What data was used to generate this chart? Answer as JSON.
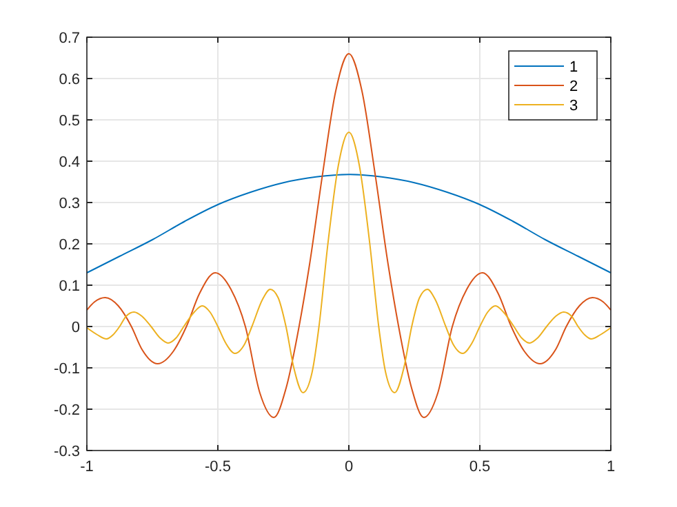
{
  "chart_data": {
    "type": "line",
    "xlim": [
      -1,
      1
    ],
    "ylim": [
      -0.3,
      0.7
    ],
    "xticks": [
      -1,
      -0.5,
      0,
      0.5,
      1
    ],
    "yticks": [
      -0.3,
      -0.2,
      -0.1,
      0,
      0.1,
      0.2,
      0.3,
      0.4,
      0.5,
      0.6,
      0.7
    ],
    "grid": true,
    "legend": "top right",
    "marker": "none",
    "line_style": "solid",
    "series": [
      {
        "name": "1",
        "color": "#0072bd",
        "x": [
          -1,
          -0.875,
          -0.75,
          -0.625,
          -0.5,
          -0.375,
          -0.25,
          -0.125,
          0,
          0.125,
          0.25,
          0.375,
          0.5,
          0.625,
          0.75,
          0.875,
          1
        ],
        "values": [
          0.13,
          0.17,
          0.21,
          0.255,
          0.295,
          0.325,
          0.348,
          0.362,
          0.368,
          0.362,
          0.348,
          0.325,
          0.295,
          0.255,
          0.21,
          0.17,
          0.13
        ]
      },
      {
        "name": "2",
        "color": "#d95319",
        "x": [
          -1,
          -0.97,
          -0.93,
          -0.88,
          -0.83,
          -0.79,
          -0.73,
          -0.67,
          -0.62,
          -0.57,
          -0.51,
          -0.45,
          -0.395,
          -0.34,
          -0.286,
          -0.24,
          -0.19,
          -0.15,
          -0.1,
          -0.05,
          0,
          0.05,
          0.1,
          0.15,
          0.19,
          0.24,
          0.286,
          0.34,
          0.395,
          0.45,
          0.51,
          0.57,
          0.62,
          0.67,
          0.73,
          0.79,
          0.83,
          0.88,
          0.93,
          0.97,
          1
        ],
        "values": [
          0.04,
          0.06,
          0.07,
          0.05,
          0,
          -0.055,
          -0.09,
          -0.06,
          0,
          0.08,
          0.13,
          0.09,
          0,
          -0.16,
          -0.22,
          -0.15,
          0,
          0.15,
          0.37,
          0.57,
          0.66,
          0.57,
          0.37,
          0.15,
          0,
          -0.15,
          -0.22,
          -0.16,
          0,
          0.09,
          0.13,
          0.08,
          0,
          -0.06,
          -0.09,
          -0.055,
          0,
          0.05,
          0.07,
          0.06,
          0.04
        ]
      },
      {
        "name": "3",
        "color": "#edb120",
        "x": [
          -1,
          -0.96,
          -0.925,
          -0.9,
          -0.875,
          -0.85,
          -0.82,
          -0.79,
          -0.755,
          -0.72,
          -0.69,
          -0.66,
          -0.63,
          -0.59,
          -0.56,
          -0.53,
          -0.5,
          -0.47,
          -0.435,
          -0.4,
          -0.37,
          -0.33,
          -0.3,
          -0.27,
          -0.24,
          -0.21,
          -0.175,
          -0.14,
          -0.114,
          -0.08,
          -0.04,
          0,
          0.04,
          0.08,
          0.114,
          0.14,
          0.175,
          0.21,
          0.24,
          0.27,
          0.3,
          0.33,
          0.37,
          0.4,
          0.435,
          0.47,
          0.5,
          0.53,
          0.56,
          0.59,
          0.63,
          0.66,
          0.69,
          0.72,
          0.755,
          0.79,
          0.82,
          0.85,
          0.875,
          0.9,
          0.925,
          0.96,
          1
        ],
        "values": [
          -0.003,
          -0.02,
          -0.03,
          -0.02,
          0,
          0.025,
          0.035,
          0.025,
          0,
          -0.028,
          -0.04,
          -0.028,
          0,
          0.035,
          0.05,
          0.035,
          0,
          -0.04,
          -0.065,
          -0.045,
          0,
          0.065,
          0.09,
          0.07,
          0,
          -0.1,
          -0.16,
          -0.11,
          0,
          0.2,
          0.39,
          0.47,
          0.39,
          0.2,
          0,
          -0.11,
          -0.16,
          -0.1,
          0,
          0.07,
          0.09,
          0.065,
          0,
          -0.045,
          -0.065,
          -0.04,
          0,
          0.035,
          0.05,
          0.035,
          0,
          -0.028,
          -0.04,
          -0.028,
          0,
          0.025,
          0.035,
          0.025,
          0,
          -0.02,
          -0.03,
          -0.02,
          -0.003
        ]
      }
    ]
  }
}
